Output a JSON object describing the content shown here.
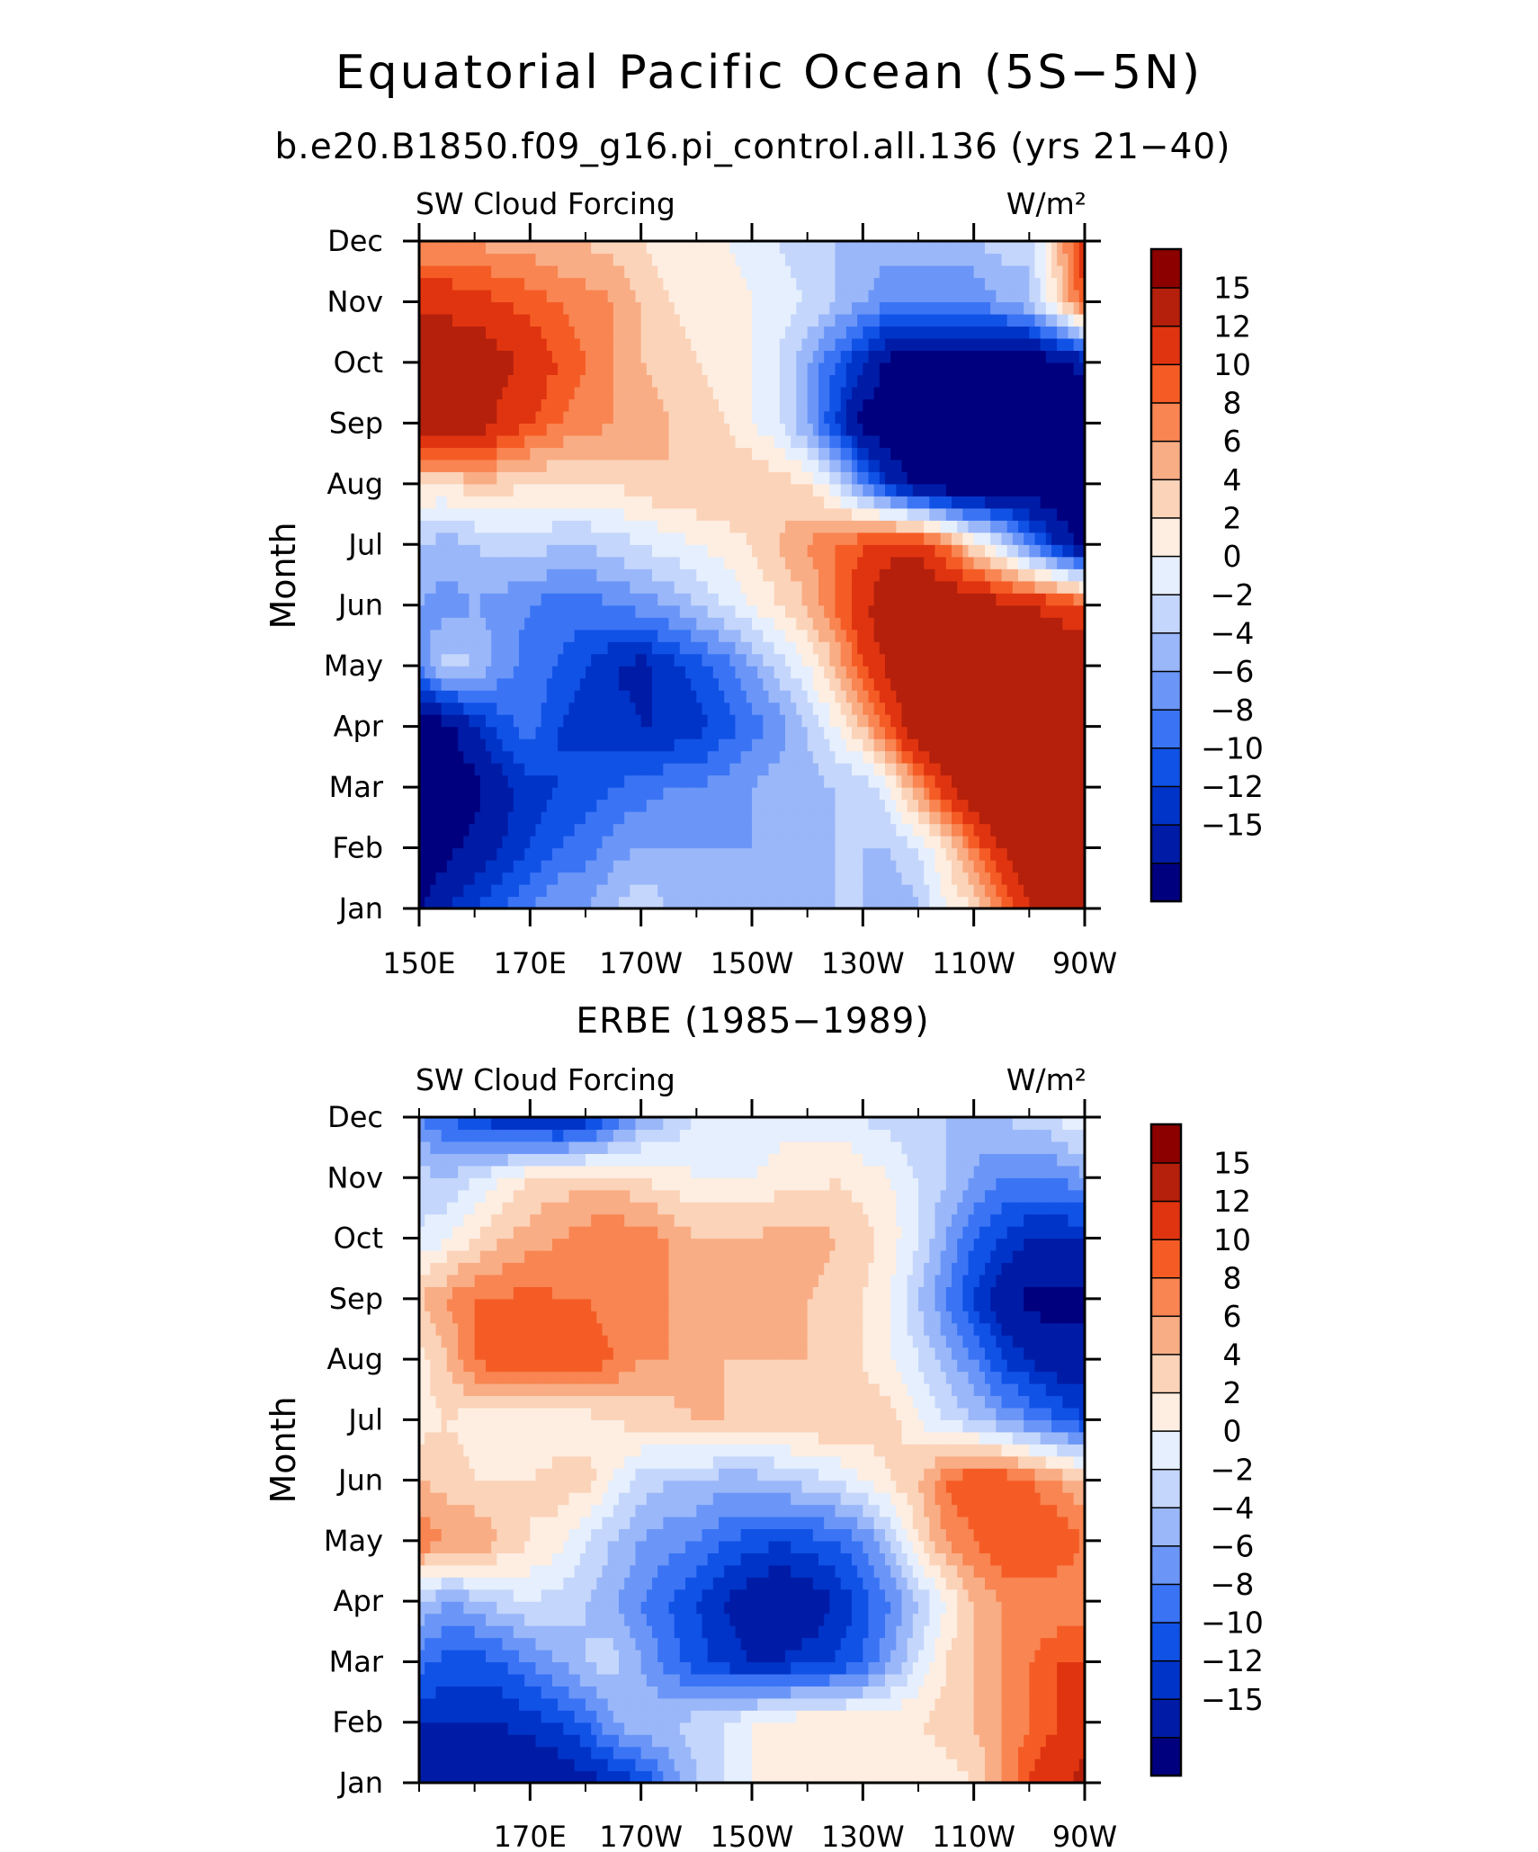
{
  "figure": {
    "title": "Equatorial Pacific Ocean (5S−5N)",
    "subtitle": "b.e20.B1850.f09_g16.pi_control.all.136 (yrs 21−40)"
  },
  "colorbar": {
    "labels": [
      "15",
      "12",
      "10",
      "8",
      "6",
      "4",
      "2",
      "0",
      "−2",
      "−4",
      "−6",
      "−8",
      "−10",
      "−12",
      "−15"
    ],
    "colors": [
      "#00007f",
      "#001ca6",
      "#0034c8",
      "#1152e6",
      "#3a74f5",
      "#6b96f7",
      "#9ab7f9",
      "#c4d6fb",
      "#e6effd",
      "#fdeee1",
      "#fbd3b9",
      "#f9ad85",
      "#f88552",
      "#f55c25",
      "#e03410",
      "#b4200b",
      "#8c0000"
    ]
  },
  "chart_data": [
    {
      "type": "heatmap",
      "plot_type": "filled contour (Hovmoller diagram)",
      "title": "",
      "left_label": "SW Cloud Forcing",
      "right_label": "W/m²",
      "ylabel": "Month",
      "y_ticks": [
        "Jan",
        "Feb",
        "Mar",
        "Apr",
        "May",
        "Jun",
        "Jul",
        "Aug",
        "Sep",
        "Oct",
        "Nov",
        "Dec"
      ],
      "x_ticks": [
        "150E",
        "170E",
        "170W",
        "150W",
        "130W",
        "110W",
        "90W"
      ],
      "x": [
        150,
        155,
        160,
        165,
        170,
        175,
        180,
        185,
        190,
        195,
        200,
        205,
        210,
        215,
        220,
        225,
        230,
        235,
        240,
        245,
        250,
        255,
        260,
        265,
        270
      ],
      "xlim": [
        150,
        270
      ],
      "y": [
        "Jan",
        "Feb",
        "Mar",
        "Apr",
        "May",
        "Jun",
        "Jul",
        "Aug",
        "Sep",
        "Oct",
        "Nov",
        "Dec"
      ],
      "levels": [
        -15,
        -12,
        -10,
        -8,
        -6,
        -4,
        -2,
        0,
        2,
        4,
        6,
        8,
        10,
        12,
        15
      ],
      "values": [
        [
          -15,
          -12,
          -10,
          -8,
          -6,
          -4,
          -4,
          -2,
          0,
          -2,
          -4,
          -2,
          -4,
          -4,
          -2,
          -2,
          -2,
          -4,
          -2,
          2,
          4,
          10,
          15,
          20,
          20
        ],
        [
          -18,
          -16,
          -14,
          -12,
          -10,
          -8,
          -7,
          -5,
          -4,
          -4,
          -4,
          -4,
          -4,
          -3,
          -3,
          -2,
          -2,
          -2,
          0,
          4,
          10,
          15,
          18,
          20,
          20
        ],
        [
          -20,
          -18,
          -16,
          -13,
          -11,
          -10,
          -9,
          -8,
          -7,
          -6,
          -6,
          -5,
          -4,
          -3,
          -3,
          -2,
          -2,
          2,
          8,
          14,
          18,
          20,
          18,
          18,
          18
        ],
        [
          -18,
          -16,
          -12,
          -9,
          -7,
          -10,
          -11,
          -11,
          -12,
          -12,
          -11,
          -9,
          -7,
          -5,
          -2,
          2,
          6,
          12,
          18,
          20,
          20,
          20,
          18,
          18,
          18
        ],
        [
          -6,
          -1,
          -2,
          -5,
          -7,
          -8,
          -10,
          -12,
          -13,
          -11,
          -9,
          -7,
          -4,
          -1,
          2,
          6,
          12,
          16,
          20,
          20,
          20,
          18,
          18,
          18,
          18
        ],
        [
          -4,
          -5,
          -4,
          -5,
          -6,
          -7,
          -7,
          -6,
          -5,
          -4,
          -2,
          0,
          2,
          4,
          6,
          10,
          14,
          18,
          20,
          18,
          18,
          16,
          15,
          14,
          12
        ],
        [
          -2,
          -3,
          -2,
          -1,
          -1,
          -2,
          -2,
          -1,
          0,
          1,
          2,
          3,
          4,
          6,
          8,
          10,
          12,
          14,
          14,
          10,
          4,
          0,
          -6,
          -12,
          -16
        ],
        [
          4,
          4,
          5,
          5,
          4,
          4,
          4,
          4,
          5,
          6,
          6,
          6,
          6,
          5,
          4,
          0,
          -6,
          -12,
          -16,
          -18,
          -18,
          -18,
          -18,
          -18,
          -18
        ],
        [
          18,
          18,
          18,
          14,
          12,
          10,
          9,
          8,
          8,
          6,
          5,
          4,
          2,
          0,
          -4,
          -10,
          -16,
          -18,
          -18,
          -18,
          -18,
          -18,
          -18,
          -18,
          -18
        ],
        [
          18,
          18,
          18,
          16,
          14,
          12,
          10,
          8,
          6,
          5,
          4,
          3,
          2,
          0,
          -4,
          -8,
          -12,
          -16,
          -18,
          -18,
          -18,
          -18,
          -18,
          -16,
          -14
        ],
        [
          14,
          14,
          13,
          12,
          11,
          10,
          9,
          8,
          6,
          4,
          3,
          3,
          2,
          1,
          0,
          -2,
          -4,
          -6,
          -6,
          -6,
          -6,
          -4,
          -2,
          4,
          12
        ],
        [
          8,
          8,
          8,
          7,
          7,
          6,
          6,
          5,
          4,
          3,
          3,
          2,
          1,
          0,
          -2,
          -2,
          -2,
          -3,
          -3,
          -3,
          -2,
          -1,
          -2,
          6,
          14
        ]
      ]
    },
    {
      "type": "heatmap",
      "plot_type": "filled contour (Hovmoller diagram)",
      "title": "ERBE (1985−1989)",
      "left_label": "SW Cloud Forcing",
      "right_label": "W/m²",
      "ylabel": "Month",
      "y_ticks": [
        "Jan",
        "Feb",
        "Mar",
        "Apr",
        "May",
        "Jun",
        "Jul",
        "Aug",
        "Sep",
        "Oct",
        "Nov",
        "Dec"
      ],
      "x_ticks": [
        "170E",
        "170W",
        "150W",
        "130W",
        "110W",
        "90W"
      ],
      "x": [
        150,
        155,
        160,
        165,
        170,
        175,
        180,
        185,
        190,
        195,
        200,
        205,
        210,
        215,
        220,
        225,
        230,
        235,
        240,
        245,
        250,
        255,
        260,
        265,
        270
      ],
      "xlim": [
        150,
        270
      ],
      "y": [
        "Jan",
        "Feb",
        "Mar",
        "Apr",
        "May",
        "Jun",
        "Jul",
        "Aug",
        "Sep",
        "Oct",
        "Nov",
        "Dec"
      ],
      "levels": [
        -15,
        -12,
        -10,
        -8,
        -6,
        -4,
        -2,
        0,
        2,
        4,
        6,
        8,
        10,
        12,
        15
      ],
      "values": [
        [
          -12,
          -14,
          -14,
          -14,
          -15,
          -14,
          -13,
          -12,
          -10,
          -6,
          -2,
          0,
          2,
          2,
          2,
          2,
          2,
          2,
          2,
          3,
          4,
          8,
          12,
          14,
          16
        ],
        [
          -12,
          -12,
          -12,
          -12,
          -11,
          -10,
          -8,
          -4,
          -2,
          -2,
          -1,
          0,
          2,
          3,
          4,
          4,
          4,
          4,
          4,
          5,
          6,
          8,
          10,
          12,
          14
        ],
        [
          -7,
          -9,
          -9,
          -8,
          -6,
          -4,
          -2,
          -1,
          -4,
          -7,
          -9,
          -11,
          -12,
          -12,
          -11,
          -10,
          -8,
          -4,
          0,
          4,
          6,
          8,
          10,
          12,
          12
        ],
        [
          -2,
          -4,
          -3,
          -1,
          0,
          -1,
          -2,
          -4,
          -6,
          -8,
          -10,
          -12,
          -14,
          -15,
          -14,
          -12,
          -9,
          -6,
          -2,
          2,
          6,
          8,
          8,
          8,
          8
        ],
        [
          10,
          8,
          8,
          6,
          4,
          3,
          0,
          -2,
          -4,
          -5,
          -6,
          -8,
          -9,
          -10,
          -9,
          -8,
          -6,
          -2,
          4,
          8,
          10,
          12,
          12,
          12,
          10
        ],
        [
          6,
          5,
          4,
          4,
          4,
          5,
          5,
          2,
          -1,
          -2,
          -2,
          -3,
          -3,
          -2,
          -1,
          0,
          2,
          4,
          6,
          10,
          12,
          12,
          10,
          8,
          6
        ],
        [
          3,
          4,
          3,
          3,
          2,
          2,
          3,
          4,
          5,
          5,
          6,
          6,
          5,
          5,
          6,
          6,
          5,
          5,
          2,
          0,
          -2,
          -4,
          -6,
          -8,
          -10
        ],
        [
          3,
          6,
          10,
          12,
          12,
          12,
          12,
          10,
          8,
          8,
          7,
          6,
          6,
          6,
          6,
          5,
          4,
          2,
          0,
          -3,
          -6,
          -10,
          -12,
          -14,
          -14
        ],
        [
          6,
          8,
          10,
          10,
          11,
          10,
          10,
          9,
          8,
          8,
          7,
          6,
          6,
          6,
          6,
          5,
          4,
          2,
          -2,
          -6,
          -10,
          -14,
          -16,
          -16,
          -16
        ],
        [
          0,
          2,
          4,
          6,
          7,
          8,
          9,
          10,
          9,
          8,
          6,
          6,
          6,
          7,
          7,
          6,
          5,
          3,
          0,
          -4,
          -8,
          -10,
          -12,
          -12,
          -12
        ],
        [
          -1,
          -2,
          0,
          2,
          4,
          5,
          5,
          5,
          4,
          3,
          2,
          2,
          2,
          3,
          3,
          4,
          3,
          2,
          0,
          -2,
          -4,
          -6,
          -6,
          -6,
          -4
        ],
        [
          -6,
          -8,
          -10,
          -12,
          -12,
          -14,
          -12,
          -8,
          -4,
          -2,
          0,
          0,
          0,
          1,
          1,
          1,
          0,
          -1,
          -2,
          -2,
          -3,
          -2,
          -1,
          0,
          2
        ]
      ]
    }
  ]
}
